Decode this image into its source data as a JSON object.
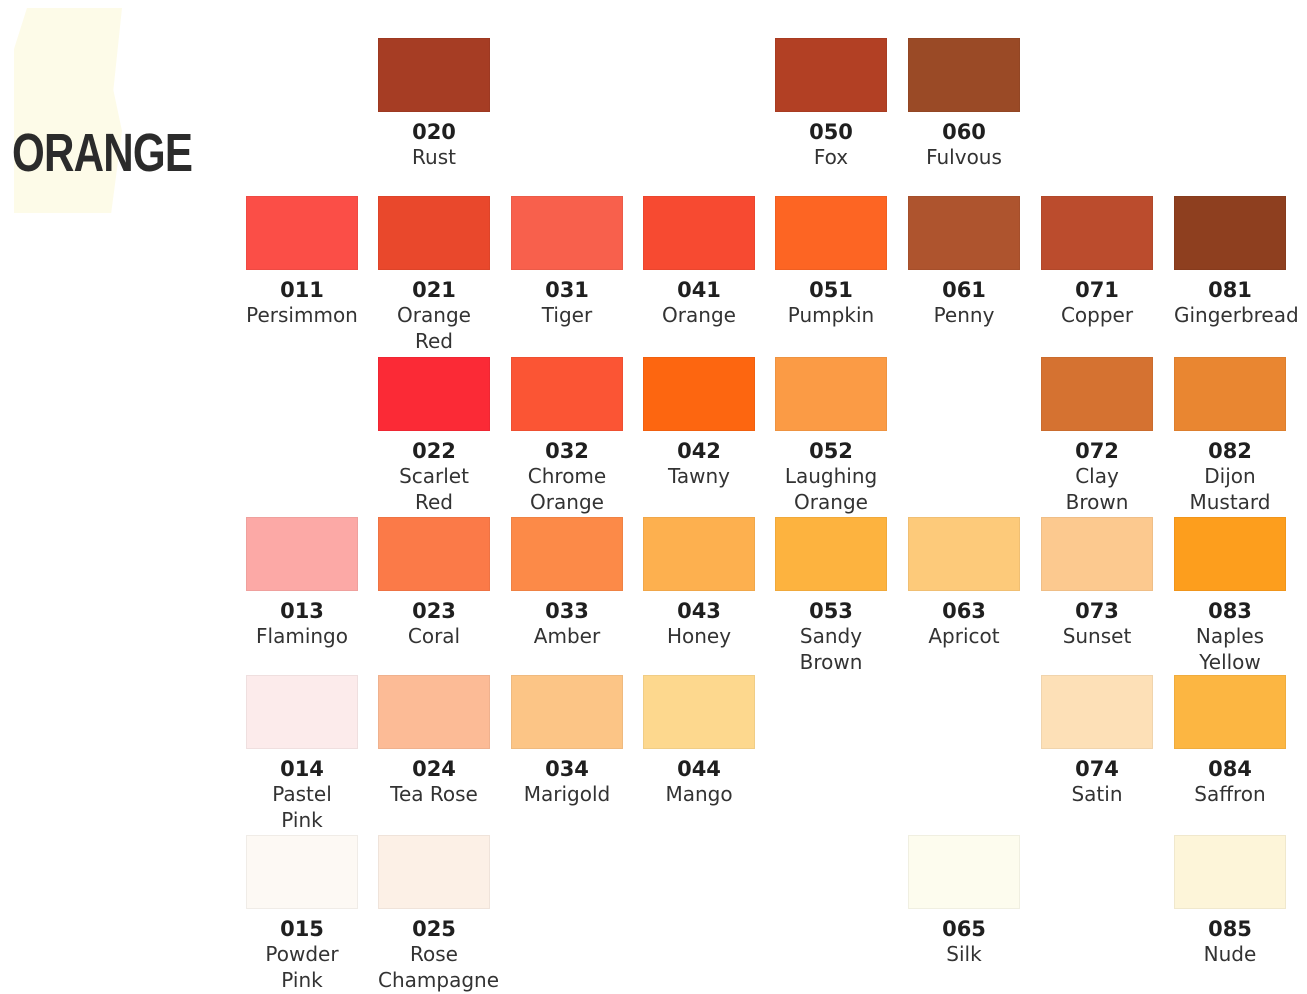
{
  "title": "ORANGE",
  "swatches": [
    {
      "code": "020",
      "name": "Rust",
      "color": "#a63d24"
    },
    {
      "code": "050",
      "name": "Fox",
      "color": "#b24024"
    },
    {
      "code": "060",
      "name": "Fulvous",
      "color": "#9a4a26"
    },
    {
      "code": "011",
      "name": "Persimmon",
      "color": "#fb4e47"
    },
    {
      "code": "021",
      "name": "Orange\nRed",
      "color": "#e9482c"
    },
    {
      "code": "031",
      "name": "Tiger",
      "color": "#f8604c"
    },
    {
      "code": "041",
      "name": "Orange",
      "color": "#f74a31"
    },
    {
      "code": "051",
      "name": "Pumpkin",
      "color": "#fd6523"
    },
    {
      "code": "061",
      "name": "Penny",
      "color": "#ae542e"
    },
    {
      "code": "071",
      "name": "Copper",
      "color": "#bb4c2d"
    },
    {
      "code": "081",
      "name": "Gingerbread",
      "color": "#8e3f1f"
    },
    {
      "code": "022",
      "name": "Scarlet\nRed",
      "color": "#fb2a36"
    },
    {
      "code": "032",
      "name": "Chrome\nOrange",
      "color": "#fb5534"
    },
    {
      "code": "042",
      "name": "Tawny",
      "color": "#fd6610"
    },
    {
      "code": "052",
      "name": "Laughing\nOrange",
      "color": "#fb9b45"
    },
    {
      "code": "072",
      "name": "Clay\nBrown",
      "color": "#d57231"
    },
    {
      "code": "082",
      "name": "Dijon\nMustard",
      "color": "#e98631"
    },
    {
      "code": "013",
      "name": "Flamingo",
      "color": "#fca9a6"
    },
    {
      "code": "023",
      "name": "Coral",
      "color": "#fb7a48"
    },
    {
      "code": "033",
      "name": "Amber",
      "color": "#fc8a48"
    },
    {
      "code": "043",
      "name": "Honey",
      "color": "#fdb04f"
    },
    {
      "code": "053",
      "name": "Sandy\nBrown",
      "color": "#fdb33f"
    },
    {
      "code": "063",
      "name": "Apricot",
      "color": "#fdca7a"
    },
    {
      "code": "073",
      "name": "Sunset",
      "color": "#fcc98f"
    },
    {
      "code": "083",
      "name": "Naples\nYellow",
      "color": "#fd9e1d"
    },
    {
      "code": "014",
      "name": "Pastel\nPink",
      "color": "#fcebeb"
    },
    {
      "code": "024",
      "name": "Tea Rose",
      "color": "#fcbb96"
    },
    {
      "code": "034",
      "name": "Marigold",
      "color": "#fcc586"
    },
    {
      "code": "044",
      "name": "Mango",
      "color": "#fdd88e"
    },
    {
      "code": "074",
      "name": "Satin",
      "color": "#fde0b7"
    },
    {
      "code": "084",
      "name": "Saffron",
      "color": "#fcb642"
    },
    {
      "code": "015",
      "name": "Powder\nPink",
      "color": "#fdf9f4"
    },
    {
      "code": "025",
      "name": "Rose\nChampagne",
      "color": "#fcf0e6"
    },
    {
      "code": "065",
      "name": "Silk",
      "color": "#fdfcee"
    },
    {
      "code": "085",
      "name": "Nude",
      "color": "#fdf5d9"
    }
  ]
}
